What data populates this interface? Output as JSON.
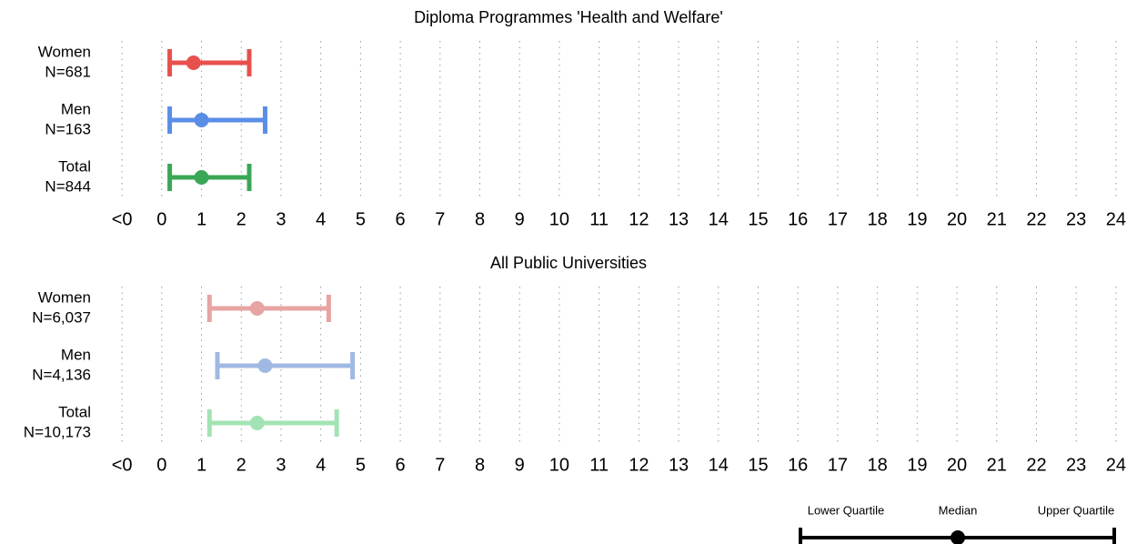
{
  "chart_data": [
    {
      "type": "errorbar",
      "title": "Diploma Programmes 'Health and Welfare'",
      "xlim": [
        -1.3,
        24.3
      ],
      "xticks": [
        {
          "value": -1,
          "label": "<0"
        },
        0,
        1,
        2,
        3,
        4,
        5,
        6,
        7,
        8,
        9,
        10,
        11,
        12,
        13,
        14,
        15,
        16,
        17,
        18,
        19,
        20,
        21,
        22,
        23,
        24
      ],
      "grid": true,
      "series": [
        {
          "name": "Women",
          "n_label": "N=681",
          "color": "#e8504d",
          "lower": 0.2,
          "median": 0.8,
          "upper": 2.2
        },
        {
          "name": "Men",
          "n_label": "N=163",
          "color": "#5a8ee6",
          "lower": 0.2,
          "median": 1.0,
          "upper": 2.6
        },
        {
          "name": "Total",
          "n_label": "N=844",
          "color": "#3aa757",
          "lower": 0.2,
          "median": 1.0,
          "upper": 2.2
        }
      ]
    },
    {
      "type": "errorbar",
      "title": "All Public Universities",
      "xlim": [
        -1.3,
        24.3
      ],
      "xticks": [
        {
          "value": -1,
          "label": "<0"
        },
        0,
        1,
        2,
        3,
        4,
        5,
        6,
        7,
        8,
        9,
        10,
        11,
        12,
        13,
        14,
        15,
        16,
        17,
        18,
        19,
        20,
        21,
        22,
        23,
        24
      ],
      "grid": true,
      "series": [
        {
          "name": "Women",
          "n_label": "N=6,037",
          "color": "#e8a3a3",
          "lower": 1.2,
          "median": 2.4,
          "upper": 4.2
        },
        {
          "name": "Men",
          "n_label": "N=4,136",
          "color": "#9fb9e2",
          "lower": 1.4,
          "median": 2.6,
          "upper": 4.8
        },
        {
          "name": "Total",
          "n_label": "N=10,173",
          "color": "#a3e3b3",
          "lower": 1.2,
          "median": 2.4,
          "upper": 4.4
        }
      ]
    }
  ],
  "legend": {
    "lower": "Lower Quartile",
    "median": "Median",
    "upper": "Upper Quartile"
  }
}
